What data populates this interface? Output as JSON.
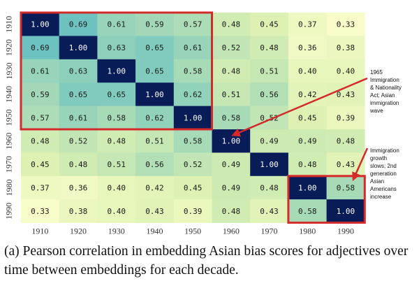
{
  "chart_data": {
    "type": "heatmap",
    "x_labels": [
      "1910",
      "1920",
      "1930",
      "1940",
      "1950",
      "1960",
      "1970",
      "1980",
      "1990"
    ],
    "y_labels": [
      "1910",
      "1920",
      "1930",
      "1940",
      "1950",
      "1960",
      "1970",
      "1980",
      "1990"
    ],
    "values": [
      [
        1.0,
        0.69,
        0.61,
        0.59,
        0.57,
        0.48,
        0.45,
        0.37,
        0.33
      ],
      [
        0.69,
        1.0,
        0.63,
        0.65,
        0.61,
        0.52,
        0.48,
        0.36,
        0.38
      ],
      [
        0.61,
        0.63,
        1.0,
        0.65,
        0.58,
        0.48,
        0.51,
        0.4,
        0.4
      ],
      [
        0.59,
        0.65,
        0.65,
        1.0,
        0.62,
        0.51,
        0.56,
        0.42,
        0.43
      ],
      [
        0.57,
        0.61,
        0.58,
        0.62,
        1.0,
        0.58,
        0.52,
        0.45,
        0.39
      ],
      [
        0.48,
        0.52,
        0.48,
        0.51,
        0.58,
        1.0,
        0.49,
        0.49,
        0.48
      ],
      [
        0.45,
        0.48,
        0.51,
        0.56,
        0.52,
        0.49,
        1.0,
        0.48,
        0.43
      ],
      [
        0.37,
        0.36,
        0.4,
        0.42,
        0.45,
        0.49,
        0.48,
        1.0,
        0.58
      ],
      [
        0.33,
        0.38,
        0.4,
        0.43,
        0.39,
        0.48,
        0.43,
        0.58,
        1.0
      ]
    ],
    "value_format": "2 decimals",
    "colormap": "YlGnBu",
    "highlight_color": "#d42a2a",
    "highlights": [
      {
        "rows": [
          0,
          4
        ],
        "cols": [
          0,
          4
        ]
      },
      {
        "rows": [
          7,
          8
        ],
        "cols": [
          7,
          8
        ]
      }
    ],
    "annotations": [
      {
        "lines": [
          "1965",
          "Immigration",
          "& Nationality",
          "Act; Asian",
          "immigration",
          "wave"
        ],
        "points_to": [
          5,
          5
        ]
      },
      {
        "lines": [
          "Immigration",
          "growth",
          "slows; 2nd",
          "generation",
          "Asian",
          "Americans",
          "increase"
        ],
        "points_to": [
          7,
          8
        ]
      }
    ]
  },
  "caption": "(a) Pearson correlation in embedding Asian bias scores for adjectives over time between embeddings for each decade."
}
